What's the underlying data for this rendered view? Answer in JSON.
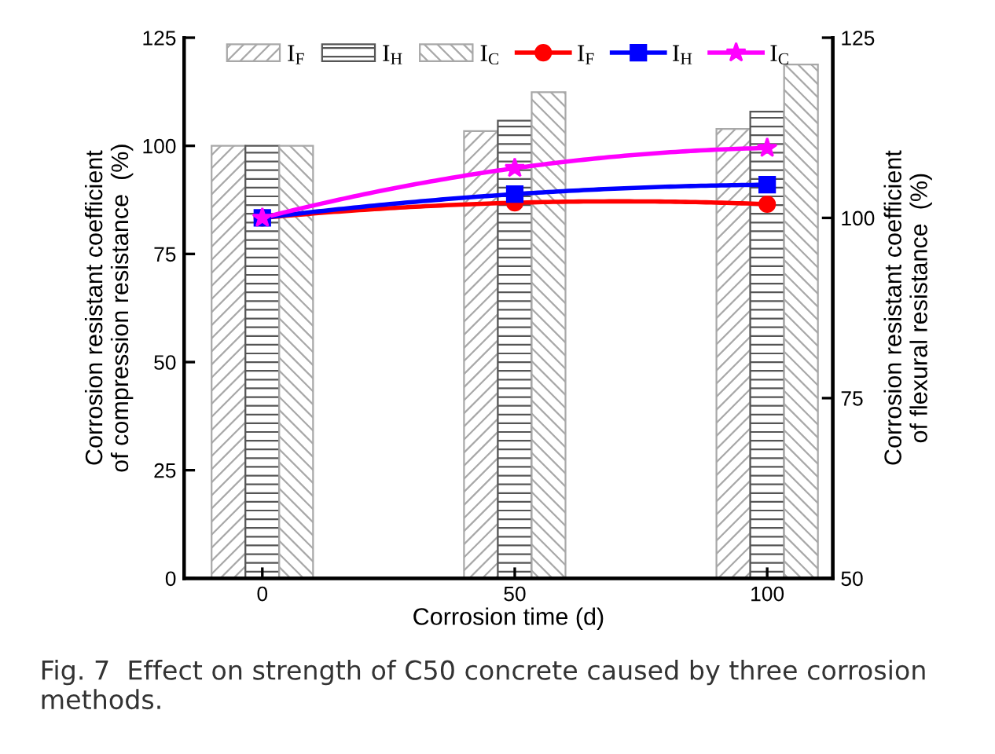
{
  "chart_data": {
    "type": "bar",
    "xlabel": "Corrosion time (d)",
    "ylabel": "Corrosion resistant coefficient\nof compression resistance  (%)",
    "y2label": "Corrosion resistant coefficient\nof flexural resistance  (%)",
    "x": [
      0,
      50,
      100
    ],
    "xlim": [
      -15.5,
      113
    ],
    "xticks": [
      0,
      50,
      100
    ],
    "ylim": [
      0,
      125
    ],
    "yticks": [
      0,
      25,
      50,
      75,
      100,
      125
    ],
    "y2lim": [
      50,
      125
    ],
    "y2ticks": [
      50,
      75,
      100,
      125
    ],
    "grid": false,
    "legend": "top",
    "series": [
      {
        "name": "I$_{F}$",
        "color": "#a8a8a8",
        "values": [
          100,
          103.4,
          103.9
        ]
      },
      {
        "name": "I$_{H}$",
        "color": "#555555",
        "values": [
          100,
          105.8,
          107.9
        ]
      },
      {
        "name": "I$_{C}$",
        "color": "#a8a8a8",
        "values": [
          100,
          112.4,
          118.8
        ]
      },
      {
        "name": "I$_{F}$",
        "type": "line",
        "axis": "y2",
        "color": "#ff0000",
        "marker": "circle",
        "values": [
          100,
          102.1,
          101.9
        ]
      },
      {
        "name": "I$_{H}$",
        "type": "line",
        "axis": "y2",
        "color": "#0000ff",
        "marker": "square",
        "values": [
          100,
          103.3,
          104.6
        ]
      },
      {
        "name": "I$_{C}$",
        "type": "line",
        "axis": "y2",
        "color": "#ff00ff",
        "marker": "star",
        "values": [
          100,
          106.9,
          109.7
        ]
      }
    ],
    "annotations": [
      "Fig. 7  Effect on strength of C50 concrete caused by three corrosion methods."
    ]
  }
}
